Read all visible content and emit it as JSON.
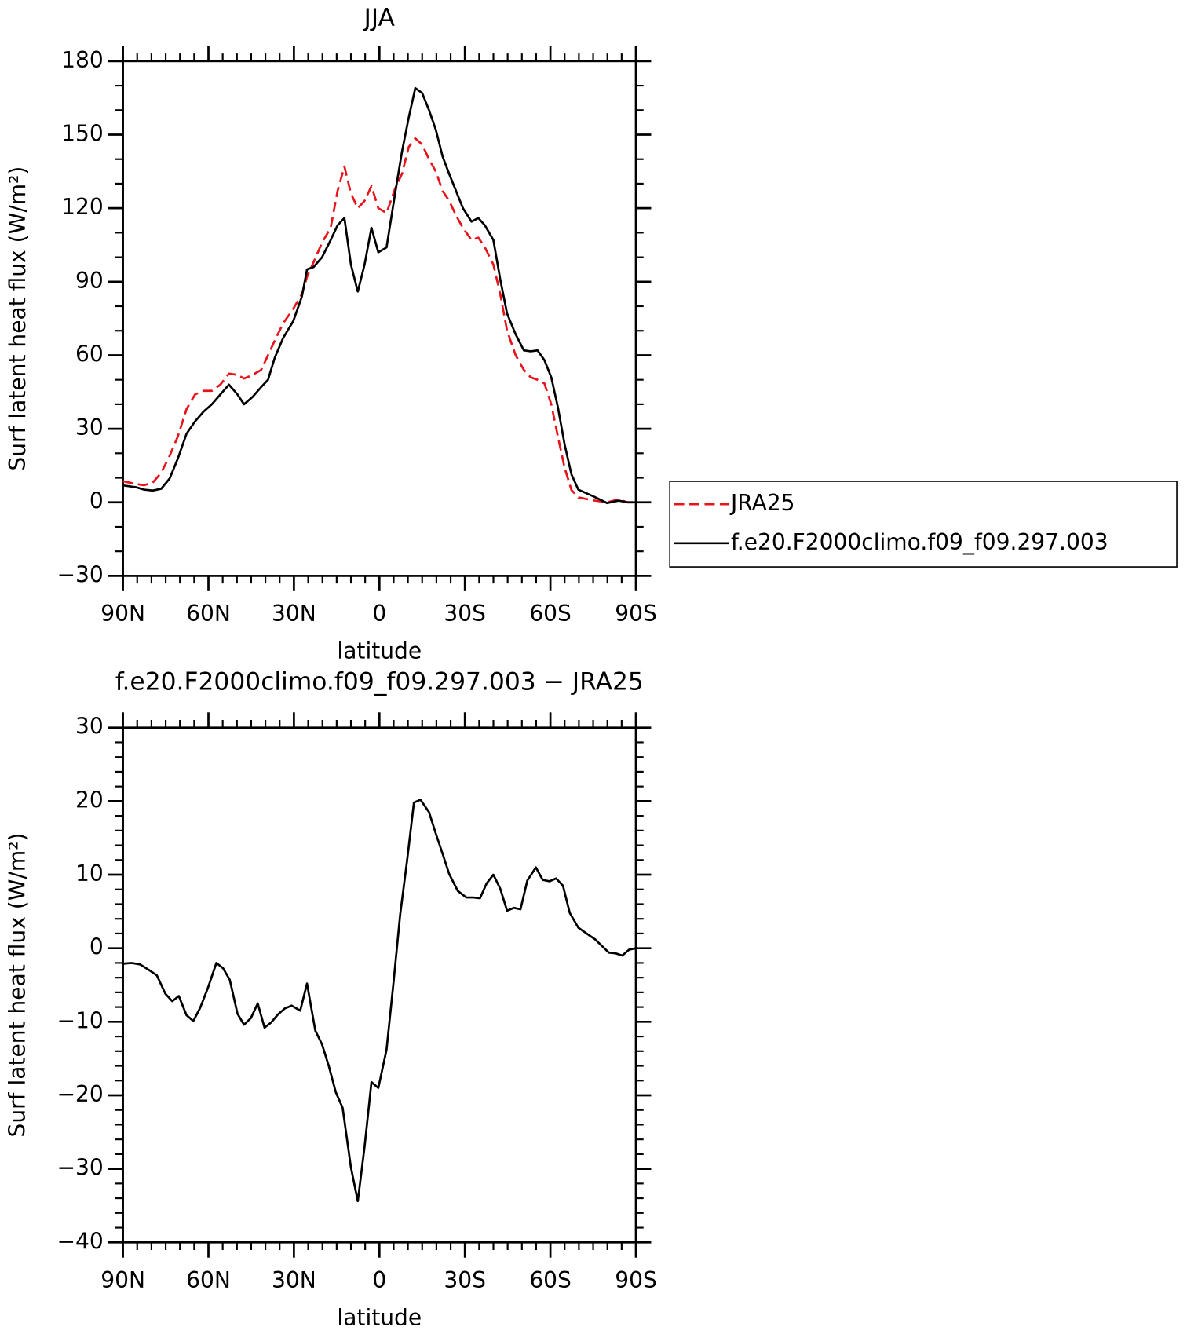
{
  "chart_data": [
    {
      "type": "line",
      "title": "JJA",
      "xlabel": "latitude",
      "ylabel": "Surf latent heat flux (W/m²)",
      "x": [
        90,
        85.5,
        82.6,
        79.6,
        76.6,
        73.6,
        70.7,
        67.7,
        64.7,
        61.7,
        58.8,
        55.8,
        52.8,
        49.8,
        47.5,
        44.5,
        41.5,
        39.1,
        36.7,
        33.8,
        30.2,
        27.2,
        25.4,
        23.1,
        20.1,
        17.1,
        14.7,
        12.3,
        10,
        7.6,
        5.2,
        2.8,
        0.4,
        -2.5,
        -5.5,
        -7.9,
        -10.3,
        -12.6,
        -15,
        -17.4,
        -19.8,
        -22.2,
        -24.5,
        -26.9,
        -29.3,
        -32.3,
        -34.7,
        -37,
        -40,
        -42.4,
        -44.8,
        -47.8,
        -50.7,
        -53.1,
        -55.5,
        -57.9,
        -60.3,
        -62.6,
        -65,
        -67.4,
        -69.8,
        -75.1,
        -79.9,
        -84,
        -87,
        -90
      ],
      "series": [
        {
          "name": "JRA25",
          "color": "#e8141b",
          "style": "dashed",
          "values": [
            8.6,
            7.5,
            7,
            8,
            12,
            19,
            27,
            38,
            44,
            45.5,
            45.5,
            48,
            52.5,
            52,
            50.5,
            52,
            54,
            60,
            66,
            73,
            79,
            85,
            92,
            98,
            106,
            112,
            127,
            137,
            126,
            120,
            123,
            129,
            120,
            118,
            128,
            134,
            145,
            148.5,
            146,
            140,
            135,
            127,
            123,
            117,
            112,
            107,
            108,
            104,
            97,
            85,
            70,
            60,
            54,
            51,
            50,
            48.5,
            40,
            27,
            14,
            5,
            2,
            0.8,
            0,
            1.2,
            0,
            0
          ]
        },
        {
          "name": "f.e20.F2000climo.f09_f09.297.003",
          "color": "#000000",
          "style": "solid",
          "values": [
            6.9,
            6.2,
            5.2,
            4.8,
            5.5,
            9.7,
            18,
            28,
            33,
            37,
            40,
            44,
            48,
            44,
            40,
            43,
            47,
            50,
            59,
            67,
            74,
            84,
            95,
            96,
            100,
            107,
            113,
            116,
            97,
            86,
            97,
            112,
            102,
            104,
            126,
            143,
            157,
            169,
            167,
            160,
            152,
            141,
            134,
            127,
            120,
            114.5,
            116,
            113,
            107,
            91,
            77,
            68.5,
            62,
            61.6,
            62,
            58,
            51,
            39,
            23.5,
            11.4,
            5.2,
            2.4,
            -0.3,
            0.7,
            0,
            0
          ]
        }
      ],
      "xlim": [
        90,
        -90
      ],
      "ylim": [
        -30,
        180
      ],
      "xticks": [
        {
          "value": 90,
          "label": "90N"
        },
        {
          "value": 60,
          "label": "60N"
        },
        {
          "value": 30,
          "label": "30N"
        },
        0,
        {
          "value": -30,
          "label": "30S"
        },
        {
          "value": -60,
          "label": "60S"
        },
        {
          "value": -90,
          "label": "90S"
        }
      ],
      "yticks": [
        {
          "value": -30,
          "label": "−30"
        },
        0,
        30,
        60,
        90,
        120,
        150,
        180
      ],
      "xminorticks": [
        85,
        80,
        75,
        70,
        65,
        55,
        50,
        45,
        40,
        35,
        25,
        20,
        15,
        10,
        5,
        -5,
        -10,
        -15,
        -20,
        -25,
        -35,
        -40,
        -45,
        -50,
        -55,
        -65,
        -70,
        -75,
        -80,
        -85
      ],
      "yminorticks": [
        -20,
        -10,
        10,
        20,
        40,
        50,
        70,
        80,
        100,
        110,
        130,
        140,
        160,
        170
      ],
      "legend": "right"
    },
    {
      "type": "line",
      "title": "f.e20.F2000climo.f09_f09.297.003 − JRA25",
      "xlabel": "latitude",
      "ylabel": "Surf latent heat flux (W/m²)",
      "x": [
        90,
        87,
        84,
        81.1,
        78.1,
        75.1,
        72.7,
        70.4,
        67.7,
        65.3,
        62.9,
        60.2,
        57.2,
        54.9,
        52.5,
        49.8,
        47.5,
        45.1,
        42.7,
        40.3,
        38,
        35.6,
        33.2,
        30.8,
        27.8,
        25.4,
        22.5,
        20.1,
        17.7,
        15.3,
        12.9,
        10,
        7.6,
        5.2,
        2.8,
        0.4,
        -2.5,
        -4.9,
        -7.3,
        -9.7,
        -12.1,
        -14.4,
        -17.4,
        -19.8,
        -22.2,
        -24.5,
        -27.5,
        -30.5,
        -32.9,
        -35.3,
        -37.6,
        -40,
        -42.4,
        -44.8,
        -47.2,
        -49.5,
        -51.9,
        -54.9,
        -57.3,
        -59.7,
        -62,
        -64.4,
        -66.8,
        -69.8,
        -72.7,
        -75.7,
        -78.1,
        -80.5,
        -82.9,
        -85.2,
        -87.6,
        -90
      ],
      "series": [
        {
          "color": "#000000",
          "style": "solid",
          "values": [
            -2.1,
            -2,
            -2.2,
            -2.9,
            -3.7,
            -6.2,
            -7.2,
            -6.5,
            -9.1,
            -9.9,
            -8.1,
            -5.4,
            -2,
            -2.7,
            -4.3,
            -8.9,
            -10.4,
            -9.5,
            -7.5,
            -10.8,
            -10.1,
            -9,
            -8.2,
            -7.8,
            -8.5,
            -4.8,
            -11.2,
            -13.1,
            -16.1,
            -19.6,
            -21.7,
            -29.8,
            -34.4,
            -27,
            -18.2,
            -19,
            -13.8,
            -4.8,
            4.6,
            11.9,
            19.8,
            20.2,
            18.5,
            15.6,
            12.8,
            10.1,
            7.8,
            6.9,
            6.9,
            6.8,
            8.8,
            10,
            8.1,
            5.1,
            5.5,
            5.3,
            9.2,
            11,
            9.3,
            9.1,
            9.5,
            8.5,
            4.8,
            2.8,
            2,
            1.2,
            0.3,
            -0.6,
            -0.7,
            -1,
            -0.2,
            0
          ]
        }
      ],
      "xlim": [
        90,
        -90
      ],
      "ylim": [
        -40,
        30
      ],
      "xticks": [
        {
          "value": 90,
          "label": "90N"
        },
        {
          "value": 60,
          "label": "60N"
        },
        {
          "value": 30,
          "label": "30N"
        },
        0,
        {
          "value": -30,
          "label": "30S"
        },
        {
          "value": -60,
          "label": "60S"
        },
        {
          "value": -90,
          "label": "90S"
        }
      ],
      "yticks": [
        {
          "value": -40,
          "label": "−40"
        },
        {
          "value": -30,
          "label": "−30"
        },
        {
          "value": -20,
          "label": "−20"
        },
        {
          "value": -10,
          "label": "−10"
        },
        0,
        10,
        20,
        30
      ],
      "xminorticks": [
        85,
        80,
        75,
        70,
        65,
        55,
        50,
        45,
        40,
        35,
        25,
        20,
        15,
        10,
        5,
        -5,
        -10,
        -15,
        -20,
        -25,
        -35,
        -40,
        -45,
        -50,
        -55,
        -65,
        -70,
        -75,
        -80,
        -85
      ],
      "yminorticks": [
        -38,
        -36,
        -34,
        -32,
        -28,
        -26,
        -24,
        -22,
        -18,
        -16,
        -14,
        -12,
        -8,
        -6,
        -4,
        -2,
        2,
        4,
        6,
        8,
        12,
        14,
        16,
        18,
        22,
        24,
        26,
        28
      ]
    }
  ]
}
